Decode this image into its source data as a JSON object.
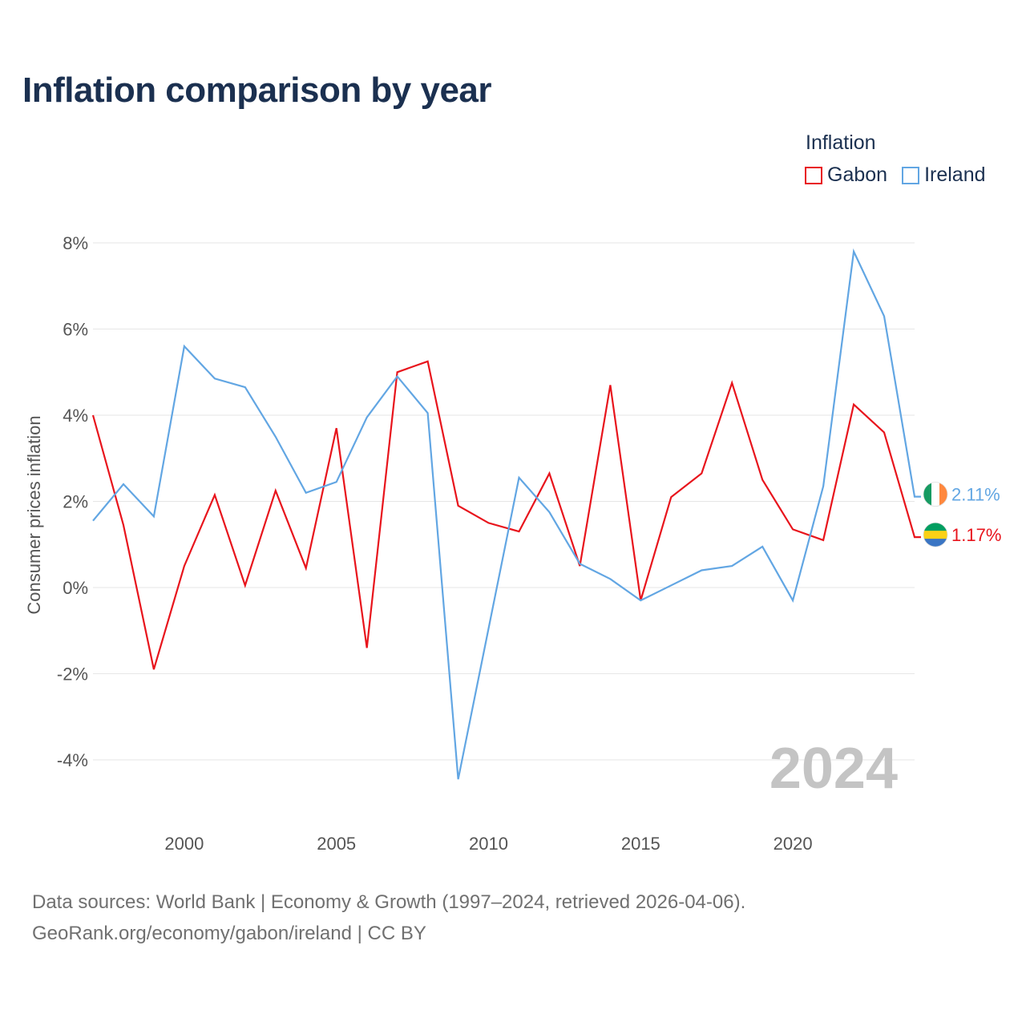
{
  "title": "Inflation comparison by year",
  "legend": {
    "title": "Inflation",
    "items": [
      {
        "name": "Gabon",
        "color": "#e8141c"
      },
      {
        "name": "Ireland",
        "color": "#62a6e3"
      }
    ]
  },
  "sources": {
    "line1": "Data sources: World Bank | Economy & Growth (1997–2024, retrieved 2026-04-06).",
    "line2": "GeoRank.org/economy/gabon/ireland | CC BY"
  },
  "chart_data": {
    "type": "line",
    "title": "Inflation comparison by year",
    "xlabel": "",
    "ylabel": "Consumer prices inflation",
    "x": [
      1997,
      1998,
      1999,
      2000,
      2001,
      2002,
      2003,
      2004,
      2005,
      2006,
      2007,
      2008,
      2009,
      2010,
      2011,
      2012,
      2013,
      2014,
      2015,
      2016,
      2017,
      2018,
      2019,
      2020,
      2021,
      2022,
      2023,
      2024
    ],
    "series": [
      {
        "name": "Gabon",
        "color": "#e8141c",
        "values": [
          4.0,
          1.45,
          -1.9,
          0.5,
          2.15,
          0.05,
          2.25,
          0.45,
          3.7,
          -1.4,
          5.0,
          5.25,
          1.9,
          1.5,
          1.3,
          2.65,
          0.5,
          4.7,
          -0.3,
          2.1,
          2.65,
          4.75,
          2.5,
          1.35,
          1.1,
          4.25,
          3.6,
          1.17
        ]
      },
      {
        "name": "Ireland",
        "color": "#62a6e3",
        "values": [
          1.55,
          2.4,
          1.65,
          5.6,
          4.85,
          4.65,
          3.5,
          2.2,
          2.45,
          3.95,
          4.9,
          4.05,
          -4.45,
          -0.95,
          2.55,
          1.75,
          0.55,
          0.2,
          -0.3,
          0.05,
          0.4,
          0.5,
          0.95,
          -0.3,
          2.35,
          7.8,
          6.3,
          2.11
        ]
      }
    ],
    "ylim": [
      -4,
      8
    ],
    "yticks": [
      8,
      6,
      4,
      2,
      0,
      -2,
      -4
    ],
    "ytick_labels": [
      "8%",
      "6%",
      "4%",
      "2%",
      "0%",
      "-2%",
      "-4%"
    ],
    "xlim": [
      1997,
      2024
    ],
    "xticks": [
      2000,
      2005,
      2010,
      2015,
      2020
    ],
    "xtick_labels": [
      "2000",
      "2005",
      "2010",
      "2015",
      "2020"
    ],
    "grid": true,
    "legend_position": "top-right",
    "current_year_label": "2024",
    "end_labels": [
      {
        "series": "Ireland",
        "text": "2.11%",
        "color": "#62a6e3",
        "flag": "ireland-flag"
      },
      {
        "series": "Gabon",
        "text": "1.17%",
        "color": "#e8141c",
        "flag": "gabon-flag"
      }
    ]
  },
  "flags": {
    "ireland": [
      "#169b62",
      "#ffffff",
      "#ff883e"
    ],
    "gabon": [
      "#009e60",
      "#fcd116",
      "#3a75c4"
    ]
  }
}
